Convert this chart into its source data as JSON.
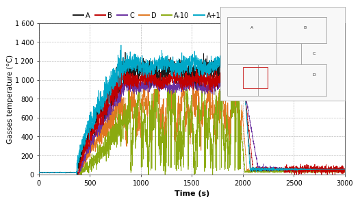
{
  "title": "",
  "xlabel": "Time (s)",
  "ylabel": "Gasses temperature (°C)",
  "xlim": [
    0,
    3000
  ],
  "ylim": [
    0,
    1600
  ],
  "xticks": [
    0,
    500,
    1000,
    1500,
    2000,
    2500,
    3000
  ],
  "yticks": [
    0,
    200,
    400,
    600,
    800,
    1000,
    1200,
    1400,
    1600
  ],
  "ytick_labels": [
    "0",
    "200",
    "400",
    "600",
    "800",
    "1 000",
    "1 200",
    "1 400",
    "1 600"
  ],
  "series_colors": {
    "A": "#1a1a1a",
    "B": "#c00000",
    "C": "#6a30a0",
    "D": "#e07820",
    "A-10": "#8aaa10",
    "A+10": "#00a8c8"
  },
  "bg_color": "#ffffff",
  "grid_color": "#bbbbbb",
  "seed": 42,
  "dt": 1,
  "t_max": 3000
}
